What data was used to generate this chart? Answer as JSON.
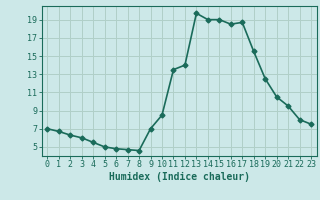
{
  "x": [
    0,
    1,
    2,
    3,
    4,
    5,
    6,
    7,
    8,
    9,
    10,
    11,
    12,
    13,
    14,
    15,
    16,
    17,
    18,
    19,
    20,
    21,
    22,
    23
  ],
  "y": [
    7.0,
    6.7,
    6.3,
    6.0,
    5.5,
    5.0,
    4.8,
    4.7,
    4.6,
    7.0,
    8.5,
    13.5,
    14.0,
    19.7,
    19.0,
    19.0,
    18.5,
    18.7,
    15.5,
    12.5,
    10.5,
    9.5,
    8.0,
    7.5
  ],
  "line_color": "#1a6b5a",
  "marker": "D",
  "markersize": 2.5,
  "background_color": "#cce8e8",
  "grid_color": "#b0cfc8",
  "tick_color": "#1a6b5a",
  "xlabel": "Humidex (Indice chaleur)",
  "xlabel_fontsize": 7,
  "xlim": [
    -0.5,
    23.5
  ],
  "ylim": [
    4.0,
    20.5
  ],
  "yticks": [
    5,
    7,
    9,
    11,
    13,
    15,
    17,
    19
  ],
  "xticks": [
    0,
    1,
    2,
    3,
    4,
    5,
    6,
    7,
    8,
    9,
    10,
    11,
    12,
    13,
    14,
    15,
    16,
    17,
    18,
    19,
    20,
    21,
    22,
    23
  ],
  "tick_fontsize": 6,
  "linewidth": 1.2
}
